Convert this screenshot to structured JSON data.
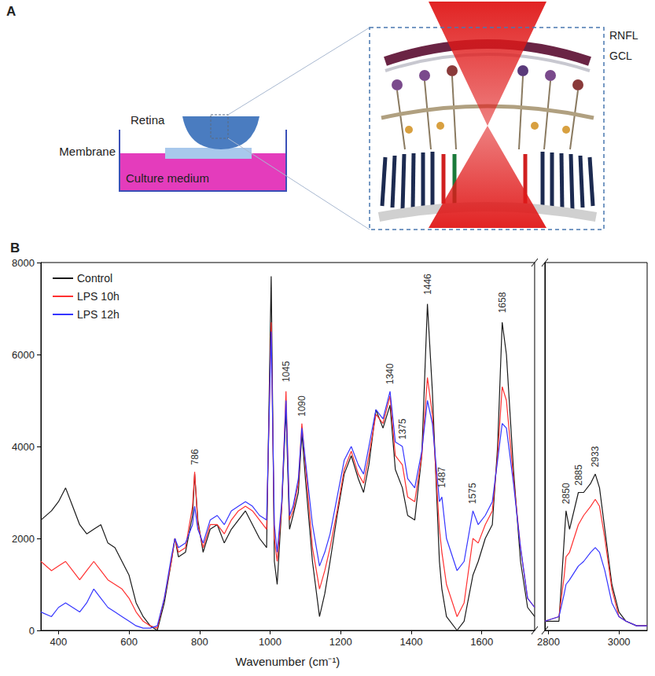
{
  "diagram": {
    "label": "A",
    "retina": "Retina",
    "membrane": "Membrane",
    "medium": "Culture medium",
    "layers": [
      "RNFL",
      "GCL"
    ]
  },
  "chart_data": [
    {
      "panel": "B",
      "type": "line",
      "xlabel": "Wavenumber (cm⁻¹)",
      "xlim": [
        350,
        1750
      ],
      "xticks": [
        400,
        600,
        800,
        1000,
        1200,
        1400,
        1600
      ],
      "ylim": [
        0,
        8000
      ],
      "yticks": [
        0,
        2000,
        4000,
        6000,
        8000
      ],
      "grid": false,
      "legend": "upper left",
      "x": [
        350,
        380,
        400,
        420,
        440,
        460,
        480,
        500,
        520,
        540,
        560,
        580,
        600,
        620,
        640,
        660,
        680,
        700,
        720,
        730,
        740,
        760,
        780,
        786,
        795,
        810,
        830,
        850,
        870,
        890,
        910,
        930,
        950,
        970,
        990,
        1003,
        1012,
        1020,
        1033,
        1045,
        1055,
        1065,
        1080,
        1090,
        1100,
        1120,
        1140,
        1155,
        1170,
        1190,
        1210,
        1230,
        1250,
        1265,
        1280,
        1300,
        1320,
        1340,
        1355,
        1375,
        1390,
        1410,
        1430,
        1446,
        1460,
        1480,
        1487,
        1500,
        1530,
        1550,
        1575,
        1590,
        1610,
        1630,
        1645,
        1658,
        1670,
        1690,
        1710,
        1730,
        1750
      ],
      "series": [
        {
          "name": "Control",
          "color": "#1a1a1a",
          "values": [
            2400,
            2600,
            2800,
            3100,
            2700,
            2300,
            2100,
            2200,
            2300,
            1900,
            1800,
            1500,
            1200,
            600,
            300,
            100,
            0,
            600,
            1500,
            2000,
            1600,
            1700,
            2500,
            3400,
            2400,
            1700,
            2200,
            2300,
            1900,
            2200,
            2400,
            2600,
            2300,
            2000,
            1800,
            7700,
            1500,
            1000,
            2700,
            4800,
            2200,
            2500,
            3000,
            4300,
            3300,
            1500,
            300,
            800,
            1500,
            2500,
            3400,
            3800,
            3300,
            3000,
            3600,
            4800,
            4400,
            4900,
            3500,
            3100,
            2500,
            2400,
            3800,
            7100,
            5200,
            1500,
            900,
            300,
            0,
            200,
            1200,
            1500,
            2000,
            2300,
            4000,
            6700,
            6000,
            3500,
            1500,
            500,
            300
          ]
        },
        {
          "name": "LPS 10h",
          "color": "#ff3030",
          "values": [
            1500,
            1300,
            1400,
            1500,
            1300,
            1100,
            1300,
            1500,
            1300,
            1100,
            1000,
            900,
            700,
            400,
            200,
            100,
            50,
            700,
            1500,
            2000,
            1700,
            1800,
            2700,
            3450,
            2300,
            1800,
            2300,
            2300,
            2100,
            2400,
            2600,
            2700,
            2600,
            2400,
            2200,
            6700,
            2000,
            1500,
            2700,
            5200,
            2400,
            2600,
            3200,
            4500,
            3600,
            1800,
            900,
            1300,
            1800,
            2600,
            3500,
            3900,
            3400,
            3200,
            3800,
            4700,
            4500,
            5100,
            3800,
            3600,
            2900,
            2800,
            3800,
            5500,
            4700,
            2200,
            1700,
            1000,
            300,
            600,
            2000,
            1900,
            2300,
            2600,
            3800,
            5300,
            5000,
            3300,
            1800,
            700,
            500
          ]
        },
        {
          "name": "LPS 12h",
          "color": "#3535ff",
          "values": [
            400,
            300,
            500,
            600,
            500,
            400,
            600,
            900,
            700,
            500,
            400,
            300,
            200,
            100,
            50,
            50,
            100,
            700,
            1600,
            2000,
            1800,
            1900,
            2300,
            2700,
            2200,
            1900,
            2400,
            2500,
            2300,
            2600,
            2700,
            2800,
            2700,
            2500,
            2400,
            6500,
            2300,
            1700,
            2800,
            5000,
            2500,
            2700,
            3300,
            4400,
            3700,
            2300,
            1400,
            1700,
            2100,
            2900,
            3700,
            4000,
            3600,
            3400,
            4000,
            4800,
            4600,
            5200,
            4100,
            4000,
            3300,
            3100,
            3900,
            5000,
            4500,
            2800,
            2900,
            2000,
            1300,
            1500,
            2600,
            2300,
            2500,
            2800,
            3700,
            4500,
            4400,
            3200,
            1800,
            700,
            500
          ]
        }
      ],
      "annotations": [
        {
          "x": 786,
          "y": 3600,
          "text": "786"
        },
        {
          "x": 1045,
          "y": 5400,
          "text": "1045"
        },
        {
          "x": 1090,
          "y": 4650,
          "text": "1090"
        },
        {
          "x": 1340,
          "y": 5350,
          "text": "1340"
        },
        {
          "x": 1375,
          "y": 4150,
          "text": "1375"
        },
        {
          "x": 1446,
          "y": 7300,
          "text": "1446"
        },
        {
          "x": 1487,
          "y": 3100,
          "text": "1487"
        },
        {
          "x": 1575,
          "y": 2750,
          "text": "1575"
        },
        {
          "x": 1658,
          "y": 6900,
          "text": "1658"
        }
      ]
    },
    {
      "type": "line",
      "xlim": [
        2790,
        3080
      ],
      "xticks": [
        2800,
        3000
      ],
      "ylim": [
        0,
        8000
      ],
      "yticks": [
        0,
        2000,
        4000,
        6000,
        8000
      ],
      "grid": false,
      "tick_labels": "x",
      "x": [
        2790,
        2830,
        2845,
        2850,
        2860,
        2885,
        2900,
        2920,
        2933,
        2945,
        2960,
        2980,
        3000,
        3020,
        3050,
        3080
      ],
      "series": [
        {
          "name": "Control",
          "color": "#1a1a1a",
          "values": [
            200,
            200,
            2000,
            2600,
            2200,
            3000,
            3000,
            3200,
            3400,
            3100,
            2200,
            1000,
            400,
            200,
            100,
            100
          ]
        },
        {
          "name": "LPS 10h",
          "color": "#ff3030",
          "values": [
            200,
            300,
            1200,
            1600,
            1700,
            2300,
            2500,
            2700,
            2850,
            2700,
            2000,
            900,
            300,
            200,
            100,
            100
          ]
        },
        {
          "name": "LPS 12h",
          "color": "#3535ff",
          "values": [
            200,
            300,
            800,
            1000,
            1100,
            1400,
            1500,
            1700,
            1800,
            1700,
            1300,
            600,
            300,
            200,
            100,
            100
          ]
        }
      ],
      "annotations": [
        {
          "x": 2850,
          "y": 2750,
          "text": "2850"
        },
        {
          "x": 2885,
          "y": 3150,
          "text": "2885"
        },
        {
          "x": 2933,
          "y": 3550,
          "text": "2933"
        }
      ]
    }
  ]
}
